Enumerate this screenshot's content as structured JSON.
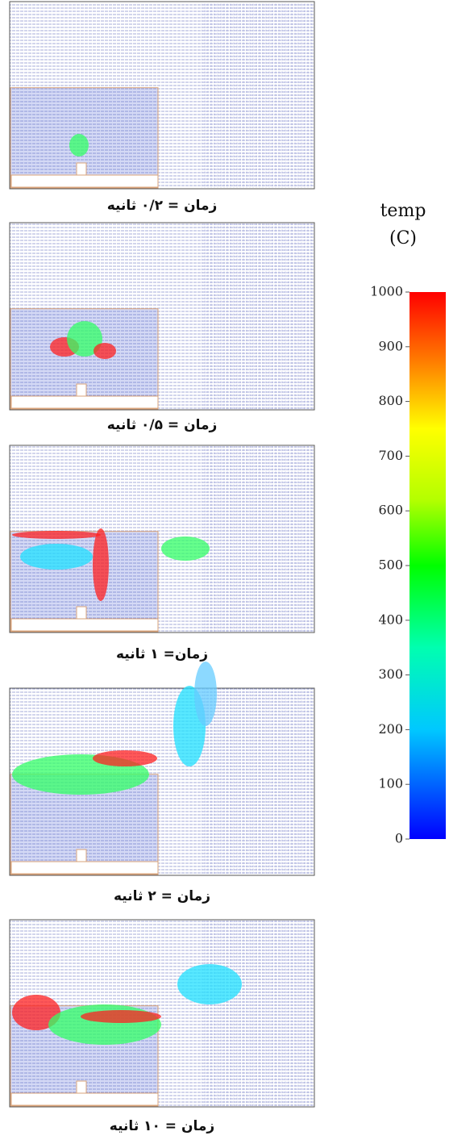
{
  "panels": [
    {
      "caption": "زمان = ۰/۲ ثانیه"
    },
    {
      "caption": "زمان = ۰/۵ ثانیه"
    },
    {
      "caption": "زمان= ۱ ثانیه"
    },
    {
      "caption": "زمان = ۲ ثانیه"
    },
    {
      "caption": "زمان = ۱۰ ثانیه"
    }
  ],
  "colorbar": {
    "title": "temp",
    "unit": "(C)",
    "lim": [
      0,
      1000
    ],
    "ticks": [
      0,
      100,
      200,
      300,
      400,
      500,
      600,
      700,
      800,
      900,
      1000
    ]
  }
}
